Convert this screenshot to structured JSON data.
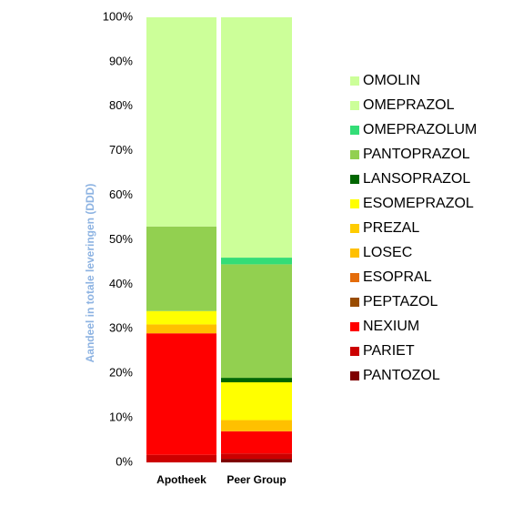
{
  "chart_data": {
    "type": "stacked_bar",
    "y_label": "Aandeel in totale leveringen (DDD)",
    "categories": [
      "Apotheek",
      "Peer Group"
    ],
    "series": [
      {
        "name": "OMOLIN",
        "color": "#ccff99",
        "values": [
          0,
          0
        ]
      },
      {
        "name": "OMEPRAZOL",
        "color": "#ccff99",
        "values": [
          47,
          54
        ]
      },
      {
        "name": "OMEPRAZOLUM",
        "color": "#33dd77",
        "values": [
          0,
          1.5
        ]
      },
      {
        "name": "PANTOPRAZOL",
        "color": "#92d050",
        "values": [
          19,
          25.5
        ]
      },
      {
        "name": "LANSOPRAZOL",
        "color": "#006600",
        "values": [
          0,
          1
        ]
      },
      {
        "name": "ESOMEPRAZOL",
        "color": "#ffff00",
        "values": [
          3,
          8.5
        ]
      },
      {
        "name": "PREZAL",
        "color": "#ffcc00",
        "values": [
          0,
          0
        ]
      },
      {
        "name": "LOSEC",
        "color": "#ffc000",
        "values": [
          2,
          2.5
        ]
      },
      {
        "name": "ESOPRAL",
        "color": "#e46c0a",
        "values": [
          0,
          0
        ]
      },
      {
        "name": "PEPTAZOL",
        "color": "#994c00",
        "values": [
          0,
          0
        ]
      },
      {
        "name": "NEXIUM",
        "color": "#ff0000",
        "values": [
          27.3,
          5
        ]
      },
      {
        "name": "PARIET",
        "color": "#cc0000",
        "values": [
          1.7,
          1.2
        ]
      },
      {
        "name": "PANTOZOL",
        "color": "#7f0000",
        "values": [
          0,
          0.8
        ]
      }
    ],
    "ylim": [
      0,
      100
    ],
    "yticks": [
      {
        "value": 0,
        "label": "0%"
      },
      {
        "value": 10,
        "label": "10%"
      },
      {
        "value": 20,
        "label": "20%"
      },
      {
        "value": 30,
        "label": "30%"
      },
      {
        "value": 40,
        "label": "40%"
      },
      {
        "value": 50,
        "label": "50%"
      },
      {
        "value": 60,
        "label": "60%"
      },
      {
        "value": 70,
        "label": "70%"
      },
      {
        "value": 80,
        "label": "80%"
      },
      {
        "value": 90,
        "label": "90%"
      },
      {
        "value": 100,
        "label": "100%"
      }
    ],
    "legend": "right"
  }
}
